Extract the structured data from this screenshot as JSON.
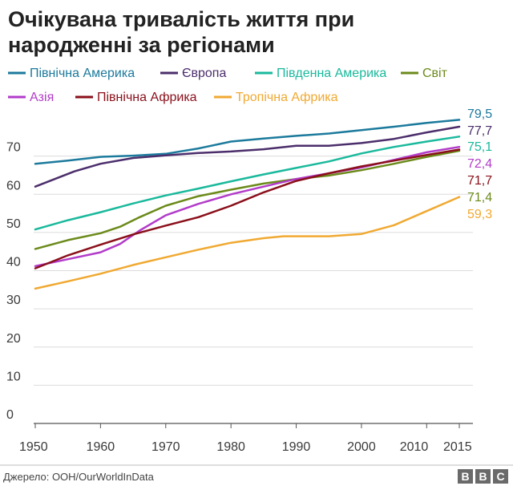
{
  "title_lines": [
    "Очікувана тривалість життя при",
    "народженні за регіонами"
  ],
  "source": "Джерело: ООН/OurWorldInData",
  "logo": "BBC",
  "colors": {
    "grid": "#dcdcdc",
    "axis": "#555555"
  },
  "chart_data": {
    "type": "line",
    "title": "Очікувана тривалість життя при народженні за регіонами",
    "xlabel": "",
    "ylabel": "",
    "xlim": [
      1950,
      2015
    ],
    "ylim": [
      0,
      80
    ],
    "x_ticks": [
      1950,
      1960,
      1970,
      1980,
      1990,
      2000,
      2010,
      2015
    ],
    "y_ticks": [
      0,
      10,
      20,
      30,
      40,
      50,
      60,
      70
    ],
    "grid": true,
    "legend_position": "top",
    "series": [
      {
        "name": "Північна Америка",
        "color": "#1c7a9c",
        "end_label": "79,5",
        "points": [
          [
            1950,
            68.0
          ],
          [
            1955,
            68.8
          ],
          [
            1960,
            69.8
          ],
          [
            1965,
            70.1
          ],
          [
            1970,
            70.6
          ],
          [
            1975,
            72.0
          ],
          [
            1980,
            73.8
          ],
          [
            1985,
            74.6
          ],
          [
            1990,
            75.3
          ],
          [
            1995,
            75.9
          ],
          [
            2000,
            76.8
          ],
          [
            2005,
            77.7
          ],
          [
            2010,
            78.7
          ],
          [
            2015,
            79.5
          ]
        ]
      },
      {
        "name": "Європа",
        "color": "#4b2e6b",
        "end_label": "77,7",
        "points": [
          [
            1950,
            62.0
          ],
          [
            1953,
            64.0
          ],
          [
            1956,
            66.0
          ],
          [
            1960,
            68.0
          ],
          [
            1965,
            69.5
          ],
          [
            1970,
            70.2
          ],
          [
            1975,
            70.8
          ],
          [
            1980,
            71.2
          ],
          [
            1985,
            71.8
          ],
          [
            1990,
            72.7
          ],
          [
            1995,
            72.7
          ],
          [
            2000,
            73.4
          ],
          [
            2005,
            74.5
          ],
          [
            2010,
            76.2
          ],
          [
            2015,
            77.7
          ]
        ]
      },
      {
        "name": "Південна Америка",
        "color": "#1ab99c",
        "end_label": "75,1",
        "points": [
          [
            1950,
            50.8
          ],
          [
            1955,
            53.2
          ],
          [
            1960,
            55.3
          ],
          [
            1965,
            57.6
          ],
          [
            1970,
            59.7
          ],
          [
            1975,
            61.5
          ],
          [
            1980,
            63.4
          ],
          [
            1985,
            65.2
          ],
          [
            1990,
            66.9
          ],
          [
            1995,
            68.6
          ],
          [
            2000,
            70.7
          ],
          [
            2005,
            72.4
          ],
          [
            2010,
            73.8
          ],
          [
            2015,
            75.1
          ]
        ]
      },
      {
        "name": "Світ",
        "color": "#6b8a1a",
        "end_label": "71,4",
        "points": [
          [
            1950,
            45.7
          ],
          [
            1955,
            48.0
          ],
          [
            1960,
            49.8
          ],
          [
            1963,
            51.5
          ],
          [
            1966,
            54.0
          ],
          [
            1970,
            57.0
          ],
          [
            1975,
            59.5
          ],
          [
            1980,
            61.2
          ],
          [
            1985,
            62.8
          ],
          [
            1990,
            64.0
          ],
          [
            1995,
            64.9
          ],
          [
            2000,
            66.3
          ],
          [
            2005,
            68.0
          ],
          [
            2010,
            69.8
          ],
          [
            2015,
            71.4
          ]
        ]
      },
      {
        "name": "Азія",
        "color": "#b23cc9",
        "end_label": "72,4",
        "points": [
          [
            1950,
            41.2
          ],
          [
            1955,
            43.0
          ],
          [
            1960,
            44.8
          ],
          [
            1963,
            47.0
          ],
          [
            1966,
            50.5
          ],
          [
            1970,
            54.5
          ],
          [
            1975,
            57.5
          ],
          [
            1980,
            60.0
          ],
          [
            1985,
            62.0
          ],
          [
            1990,
            64.0
          ],
          [
            1995,
            65.5
          ],
          [
            2000,
            67.0
          ],
          [
            2005,
            69.0
          ],
          [
            2010,
            71.0
          ],
          [
            2015,
            72.4
          ]
        ]
      },
      {
        "name": "Північна Африка",
        "color": "#8a0f1a",
        "end_label": "71,7",
        "points": [
          [
            1950,
            40.6
          ],
          [
            1955,
            44.0
          ],
          [
            1960,
            46.8
          ],
          [
            1965,
            49.5
          ],
          [
            1970,
            51.8
          ],
          [
            1975,
            54.0
          ],
          [
            1980,
            57.0
          ],
          [
            1985,
            60.5
          ],
          [
            1990,
            63.5
          ],
          [
            1995,
            65.5
          ],
          [
            2000,
            67.3
          ],
          [
            2005,
            68.8
          ],
          [
            2010,
            70.3
          ],
          [
            2015,
            71.7
          ]
        ]
      },
      {
        "name": "Тропічна Африка",
        "color": "#f0a932",
        "end_label": "59,3",
        "points": [
          [
            1950,
            35.3
          ],
          [
            1955,
            37.2
          ],
          [
            1960,
            39.2
          ],
          [
            1965,
            41.5
          ],
          [
            1970,
            43.5
          ],
          [
            1975,
            45.5
          ],
          [
            1980,
            47.3
          ],
          [
            1985,
            48.5
          ],
          [
            1988,
            49.0
          ],
          [
            1990,
            49.0
          ],
          [
            1995,
            49.0
          ],
          [
            2000,
            49.6
          ],
          [
            2005,
            51.9
          ],
          [
            2010,
            55.6
          ],
          [
            2015,
            59.3
          ]
        ]
      }
    ]
  }
}
